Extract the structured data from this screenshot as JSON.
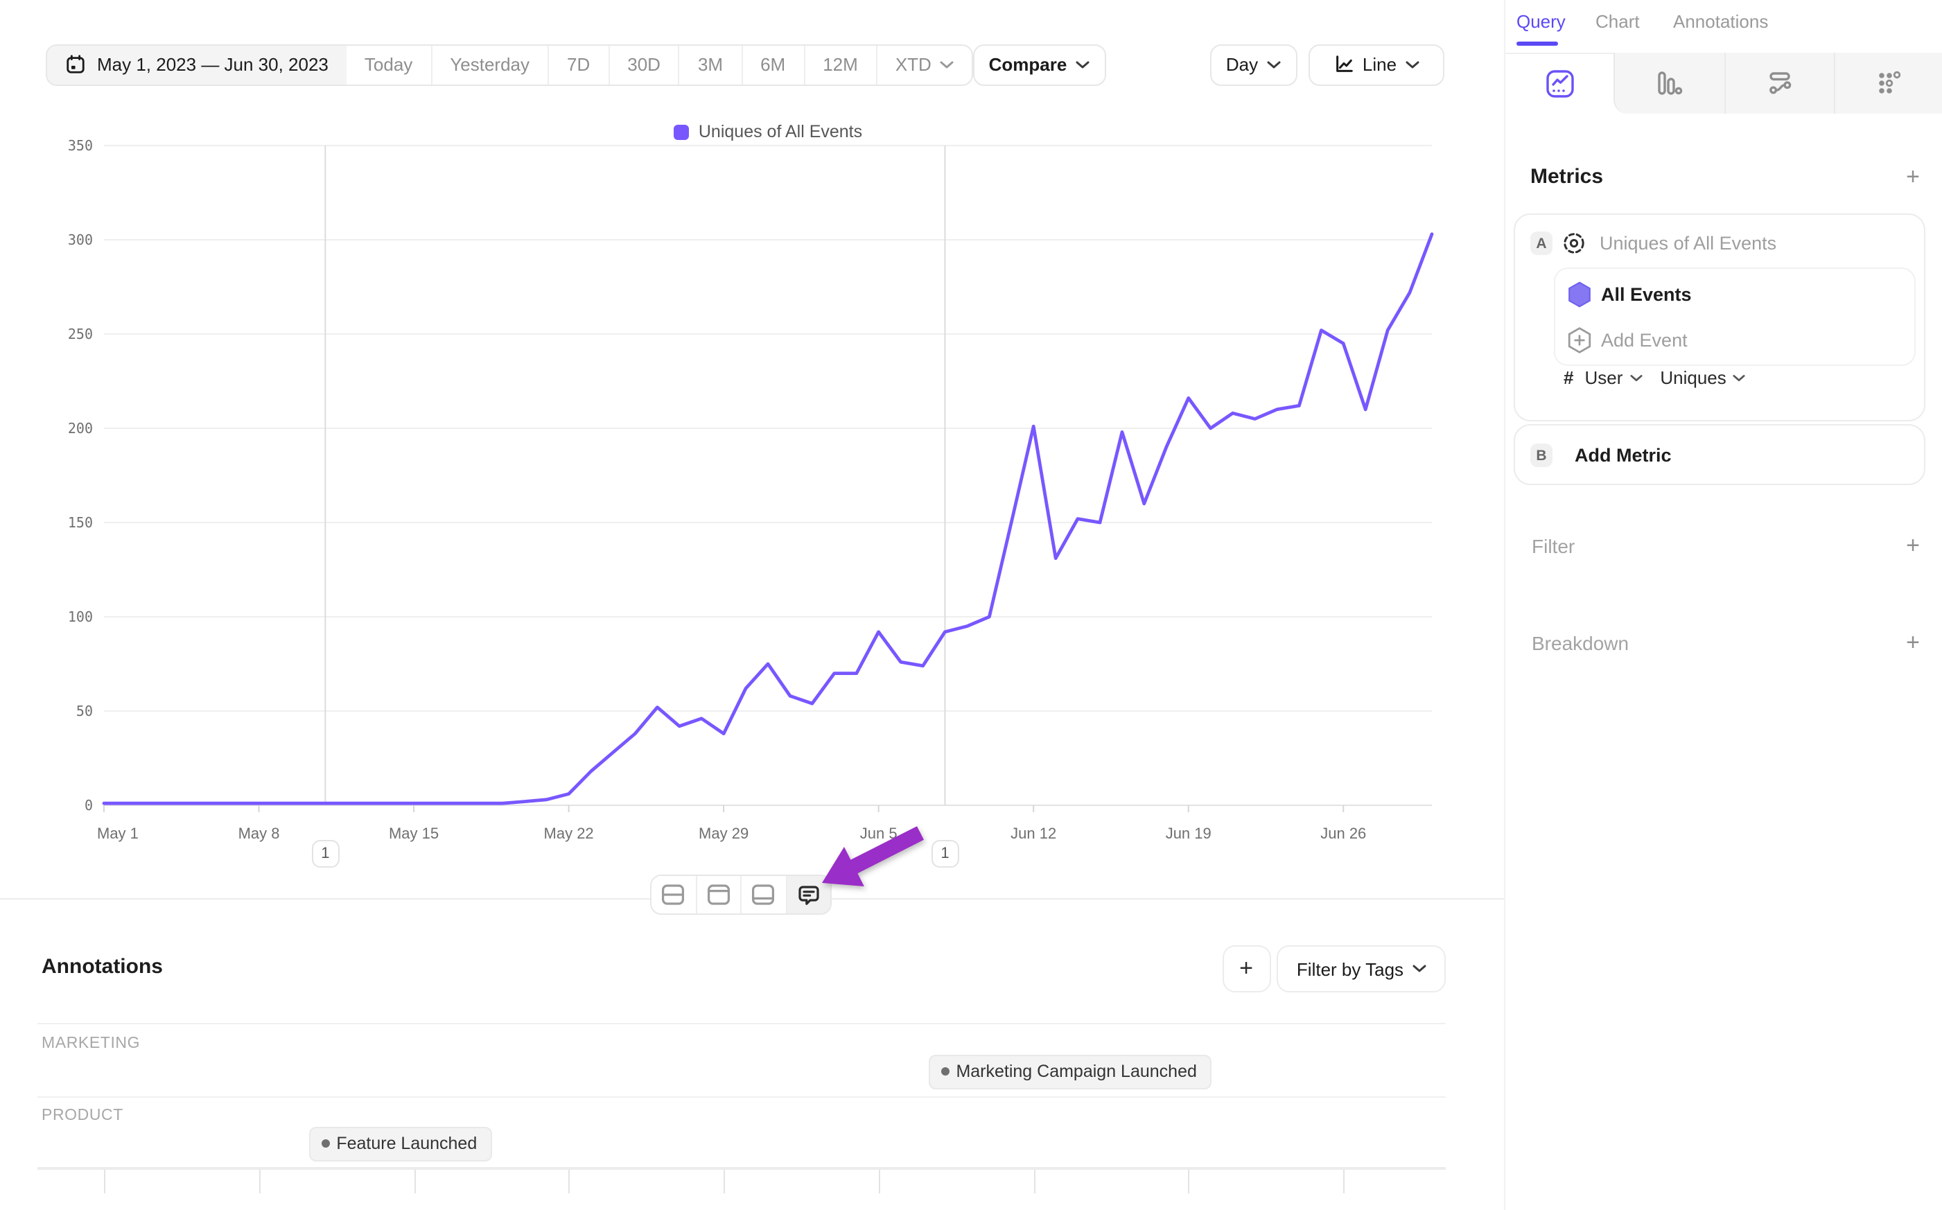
{
  "toolbar": {
    "date_range": "May 1, 2023 — Jun 30, 2023",
    "presets": [
      "Today",
      "Yesterday",
      "7D",
      "30D",
      "3M",
      "6M",
      "12M"
    ],
    "xtd_label": "XTD",
    "compare_label": "Compare",
    "granularity_label": "Day",
    "chart_type_label": "Line"
  },
  "legend": {
    "series_label": "Uniques of All Events",
    "color": "#7857ff"
  },
  "chart_data": {
    "type": "line",
    "series_name": "Uniques of All Events",
    "x_unit": "day",
    "date_start": "May 1, 2023",
    "date_end": "Jun 30, 2023",
    "categories": [
      "May 1",
      "May 2",
      "May 3",
      "May 4",
      "May 5",
      "May 6",
      "May 7",
      "May 8",
      "May 9",
      "May 10",
      "May 11",
      "May 12",
      "May 13",
      "May 14",
      "May 15",
      "May 16",
      "May 17",
      "May 18",
      "May 19",
      "May 20",
      "May 21",
      "May 22",
      "May 23",
      "May 24",
      "May 25",
      "May 26",
      "May 27",
      "May 28",
      "May 29",
      "May 30",
      "May 31",
      "Jun 1",
      "Jun 2",
      "Jun 3",
      "Jun 4",
      "Jun 5",
      "Jun 6",
      "Jun 7",
      "Jun 8",
      "Jun 9",
      "Jun 10",
      "Jun 11",
      "Jun 12",
      "Jun 13",
      "Jun 14",
      "Jun 15",
      "Jun 16",
      "Jun 17",
      "Jun 18",
      "Jun 19",
      "Jun 20",
      "Jun 21",
      "Jun 22",
      "Jun 23",
      "Jun 24",
      "Jun 25",
      "Jun 26",
      "Jun 27",
      "Jun 28",
      "Jun 29",
      "Jun 30"
    ],
    "values": [
      1,
      1,
      1,
      1,
      1,
      1,
      1,
      1,
      1,
      1,
      1,
      1,
      1,
      1,
      1,
      1,
      1,
      1,
      1,
      2,
      3,
      6,
      18,
      28,
      38,
      52,
      42,
      46,
      38,
      62,
      75,
      58,
      54,
      70,
      70,
      92,
      76,
      74,
      92,
      95,
      100,
      150,
      201,
      131,
      152,
      150,
      198,
      160,
      190,
      216,
      200,
      208,
      205,
      210,
      212,
      252,
      245,
      210,
      252,
      272,
      303
    ],
    "y_ticks": [
      0,
      50,
      100,
      150,
      200,
      250,
      300,
      350
    ],
    "ylim": [
      0,
      350
    ],
    "x_tick_days": [
      0,
      7,
      14,
      21,
      28,
      35,
      42,
      49,
      56
    ],
    "x_tick_labels": [
      "May 1",
      "May 8",
      "May 15",
      "May 22",
      "May 29",
      "Jun 5",
      "Jun 12",
      "Jun 19",
      "Jun 26"
    ],
    "line_color": "#7857ff",
    "grid": true,
    "legend_position": "top-center"
  },
  "annotation_markers": [
    {
      "day": 10,
      "count": "1"
    },
    {
      "day": 38,
      "count": "1"
    }
  ],
  "chart_footer_toolbar": {
    "buttons": [
      "split-horizontal-layout",
      "top-panel-layout",
      "bottom-panel-layout",
      "annotations-comment"
    ],
    "active": "annotations-comment"
  },
  "pointer_arrow": {
    "color": "#9a2ec8",
    "points_at": "annotations-comment-button"
  },
  "side_panel": {
    "tabs": [
      {
        "label": "Query",
        "active": true
      },
      {
        "label": "Chart",
        "active": false
      },
      {
        "label": "Annotations",
        "active": false
      }
    ],
    "view_icon_tabs": [
      "line-insights",
      "bar-chart",
      "flows",
      "dot-grid"
    ],
    "metrics": {
      "heading": "Metrics",
      "add_symbol": "+",
      "metric_a": {
        "badge": "A",
        "name": "Uniques of All Events",
        "events": [
          {
            "label": "All Events"
          }
        ],
        "add_event_label": "Add Event",
        "aggregation": {
          "symbol": "#",
          "entity": "User",
          "function": "Uniques"
        }
      },
      "metric_b": {
        "badge": "B",
        "label": "Add Metric"
      }
    },
    "filter": {
      "label": "Filter",
      "add_symbol": "+"
    },
    "breakdown": {
      "label": "Breakdown",
      "add_symbol": "+"
    }
  },
  "annotations_panel": {
    "heading": "Annotations",
    "add_label": "+",
    "filter_by_tags_label": "Filter by Tags",
    "lanes": [
      {
        "name": "MARKETING",
        "items": [
          {
            "label": "Marketing Campaign Launched",
            "day": 38
          }
        ]
      },
      {
        "name": "PRODUCT",
        "items": [
          {
            "label": "Feature Launched",
            "day": 10
          }
        ]
      }
    ]
  },
  "colors": {
    "accent_purple": "#7857ff",
    "tab_active_purple": "#5b49f5",
    "arrow_purple": "#9a2ec8",
    "hexagon_purple": "#8678f2"
  }
}
